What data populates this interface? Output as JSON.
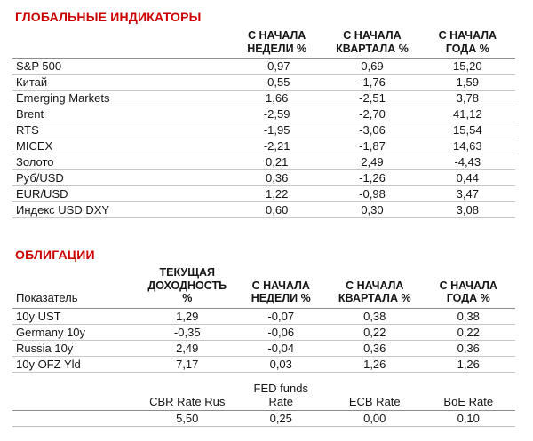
{
  "palette": {
    "accent_red": "#CC0000",
    "header_line": "#8C8C8C",
    "row_line": "#C6C6C6"
  },
  "global_indicators": {
    "title": "ГЛОБАЛЬНЫЕ ИНДИКАТОРЫ",
    "columns": [
      "С НАЧАЛА\nНЕДЕЛИ %",
      "С НАЧАЛА\nКВАРТАЛА %",
      "С НАЧАЛА\nГОДА %"
    ],
    "rows": [
      {
        "label": "S&P 500",
        "values": [
          "-0,97",
          "0,69",
          "15,20"
        ]
      },
      {
        "label": "Китай",
        "values": [
          "-0,55",
          "-1,76",
          "1,59"
        ]
      },
      {
        "label": "Emerging Markets",
        "values": [
          "1,66",
          "-2,51",
          "3,78"
        ]
      },
      {
        "label": "Brent",
        "values": [
          "-2,59",
          "-2,70",
          "41,12"
        ]
      },
      {
        "label": "RTS",
        "values": [
          "-1,95",
          "-3,06",
          "15,54"
        ]
      },
      {
        "label": "MICEX",
        "values": [
          "-2,21",
          "-1,87",
          "14,63"
        ]
      },
      {
        "label": "Золото",
        "values": [
          "0,21",
          "2,49",
          "-4,43"
        ]
      },
      {
        "label": "Руб/USD",
        "values": [
          "0,36",
          "-1,26",
          "0,44"
        ]
      },
      {
        "label": "EUR/USD",
        "values": [
          "1,22",
          "-0,98",
          "3,47"
        ]
      },
      {
        "label": "Индекс USD DXY",
        "values": [
          "0,60",
          "0,30",
          "3,08"
        ]
      }
    ]
  },
  "bonds": {
    "title": "ОБЛИГАЦИИ",
    "row_header_label": "Показатель",
    "columns": [
      "ТЕКУЩАЯ\nДОХОДНОСТЬ\n%",
      "С НАЧАЛА\nНЕДЕЛИ %",
      "С НАЧАЛА\nКВАРТАЛА %",
      "С НАЧАЛА\nГОДА %"
    ],
    "rows": [
      {
        "label": "10y UST",
        "values": [
          "1,29",
          "-0,07",
          "0,38",
          "0,38"
        ]
      },
      {
        "label": "Germany 10y",
        "values": [
          "-0,35",
          "-0,06",
          "0,22",
          "0,22"
        ]
      },
      {
        "label": "Russia 10y",
        "values": [
          "2,49",
          "-0,04",
          "0,36",
          "0,36"
        ]
      },
      {
        "label": "10y OFZ Yld",
        "values": [
          "7,17",
          "0,03",
          "1,26",
          "1,26"
        ]
      }
    ]
  },
  "rates": {
    "columns": [
      "CBR Rate Rus",
      "FED funds\nRate",
      "ECB Rate",
      "BoE Rate"
    ],
    "values": [
      "5,50",
      "0,25",
      "0,00",
      "0,10"
    ]
  }
}
